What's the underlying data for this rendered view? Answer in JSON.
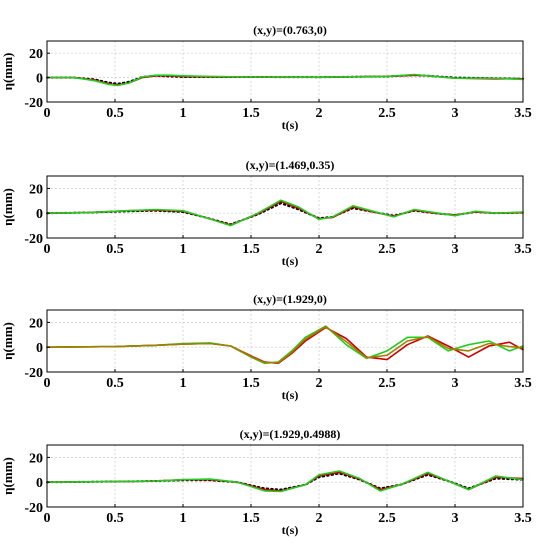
{
  "chart_data": [
    {
      "type": "line",
      "title": "(x,y)=(0.763,0)",
      "xlabel": "t(s)",
      "ylabel": "η(mm)",
      "xlim": [
        0,
        3.5
      ],
      "ylim": [
        -20,
        30
      ],
      "xticks": [
        "0",
        "0.5",
        "1",
        "1.5",
        "2",
        "2.5",
        "3",
        "3.5"
      ],
      "yticks": [
        "-20",
        "0",
        "20"
      ],
      "grid": true,
      "series": [
        {
          "style": "dotted",
          "color": "#000000",
          "x": [
            0,
            0.2,
            0.35,
            0.45,
            0.52,
            0.6,
            0.7,
            0.8,
            0.9,
            1.0,
            1.2,
            1.5,
            2.0,
            2.5,
            2.7,
            2.8,
            3.0,
            3.3,
            3.5
          ],
          "y": [
            0,
            0,
            -1.5,
            -4,
            -5,
            -3.5,
            0.5,
            1.5,
            1,
            0.5,
            0.5,
            0.5,
            0.3,
            1,
            2,
            1.5,
            0,
            -0.5,
            -1
          ]
        },
        {
          "style": "solid",
          "color": "#cc0000",
          "x": [
            0,
            0.2,
            0.35,
            0.45,
            0.52,
            0.6,
            0.7,
            0.8,
            0.9,
            1.0,
            1.2,
            1.5,
            2.0,
            2.5,
            2.7,
            2.8,
            3.0,
            3.3,
            3.5
          ],
          "y": [
            0,
            0,
            -2,
            -5,
            -6,
            -4.5,
            0,
            1.5,
            1.5,
            1,
            0.5,
            0.5,
            0.3,
            1,
            2,
            1.5,
            -0.5,
            -1,
            -1
          ]
        },
        {
          "style": "solid",
          "color": "#22cc22",
          "x": [
            0,
            0.2,
            0.35,
            0.45,
            0.52,
            0.6,
            0.7,
            0.8,
            0.9,
            1.0,
            1.2,
            1.5,
            2.0,
            2.5,
            2.7,
            2.8,
            3.0,
            3.3,
            3.5
          ],
          "y": [
            0,
            0,
            -2.5,
            -5.5,
            -6.5,
            -4.5,
            0.5,
            2,
            2,
            1.5,
            1,
            0.5,
            0.3,
            1,
            2.5,
            1.5,
            -0.5,
            -0.5,
            -1.5
          ]
        }
      ]
    },
    {
      "type": "line",
      "title": "(x,y)=(1.469,0.35)",
      "xlabel": "t(s)",
      "ylabel": "η(mm)",
      "xlim": [
        0,
        3.5
      ],
      "ylim": [
        -20,
        30
      ],
      "xticks": [
        "0",
        "0.5",
        "1",
        "1.5",
        "2",
        "2.5",
        "3",
        "3.5"
      ],
      "yticks": [
        "-20",
        "0",
        "20"
      ],
      "grid": true,
      "series": [
        {
          "style": "dotted",
          "color": "#000000",
          "x": [
            0,
            0.3,
            0.6,
            0.8,
            1.0,
            1.15,
            1.35,
            1.55,
            1.72,
            1.85,
            2.0,
            2.1,
            2.25,
            2.4,
            2.55,
            2.7,
            2.85,
            3.0,
            3.15,
            3.3,
            3.5
          ],
          "y": [
            0,
            0.5,
            1.5,
            2,
            1,
            -3,
            -9,
            -1,
            8,
            3,
            -4,
            -3,
            4,
            1,
            -2,
            2,
            0,
            -1.5,
            1,
            0,
            0.5
          ]
        },
        {
          "style": "solid",
          "color": "#cc0000",
          "x": [
            0,
            0.3,
            0.6,
            0.8,
            1.0,
            1.15,
            1.35,
            1.55,
            1.72,
            1.85,
            2.0,
            2.1,
            2.25,
            2.4,
            2.55,
            2.7,
            2.85,
            3.0,
            3.15,
            3.3,
            3.5
          ],
          "y": [
            0,
            0.5,
            2,
            2.5,
            1.5,
            -3,
            -9.5,
            -0.5,
            9.5,
            4,
            -4.5,
            -3.5,
            5,
            1,
            -2.5,
            2.5,
            0,
            -1.5,
            1,
            0,
            0.5
          ]
        },
        {
          "style": "solid",
          "color": "#22cc22",
          "x": [
            0,
            0.3,
            0.6,
            0.8,
            1.0,
            1.15,
            1.35,
            1.55,
            1.72,
            1.85,
            2.0,
            2.1,
            2.25,
            2.4,
            2.55,
            2.7,
            2.85,
            3.0,
            3.15,
            3.3,
            3.5
          ],
          "y": [
            0,
            0.5,
            2,
            3,
            2,
            -3,
            -10,
            0,
            10.5,
            5,
            -5,
            -3,
            6,
            1.5,
            -3,
            3,
            0.5,
            -2,
            1.5,
            0,
            1
          ]
        }
      ]
    },
    {
      "type": "line",
      "title": "(x,y)=(1.929,0)",
      "xlabel": "t(s)",
      "ylabel": "η(mm)",
      "xlim": [
        0,
        3.5
      ],
      "ylim": [
        -20,
        30
      ],
      "xticks": [
        "0",
        "0.5",
        "1",
        "1.5",
        "2",
        "2.5",
        "3",
        "3.5"
      ],
      "yticks": [
        "-20",
        "0",
        "20"
      ],
      "grid": true,
      "series": [
        {
          "style": "solid",
          "color": "#cc0000",
          "x": [
            0,
            0.5,
            0.8,
            1.0,
            1.2,
            1.35,
            1.5,
            1.6,
            1.7,
            1.8,
            1.9,
            2.05,
            2.2,
            2.35,
            2.5,
            2.65,
            2.8,
            2.95,
            3.1,
            3.25,
            3.4,
            3.5
          ],
          "y": [
            0,
            0.5,
            1.5,
            2.5,
            3,
            1,
            -7,
            -12,
            -13,
            -5,
            5,
            16,
            7,
            -8,
            -10,
            2,
            9,
            1,
            -8,
            1,
            4,
            -2
          ]
        },
        {
          "style": "solid",
          "color": "#22cc22",
          "x": [
            0,
            0.5,
            0.8,
            1.0,
            1.2,
            1.35,
            1.5,
            1.6,
            1.7,
            1.8,
            1.9,
            2.05,
            2.2,
            2.35,
            2.5,
            2.65,
            2.8,
            2.95,
            3.1,
            3.25,
            3.4,
            3.5
          ],
          "y": [
            0,
            0.5,
            1.5,
            3,
            3.5,
            1,
            -8,
            -13,
            -12,
            -3,
            8,
            17,
            2,
            -9,
            -3,
            8,
            8,
            -3,
            2,
            5,
            -3,
            1
          ]
        },
        {
          "style": "solid",
          "color": "#a08000",
          "x": [
            0,
            0.5,
            0.8,
            1.0,
            1.2,
            1.35,
            1.5,
            1.6,
            1.7,
            1.8,
            1.9,
            2.05,
            2.2,
            2.35,
            2.5,
            2.65,
            2.8,
            2.95,
            3.1,
            3.25,
            3.4,
            3.5
          ],
          "y": [
            0,
            0.5,
            1.5,
            2.5,
            3,
            1,
            -7.5,
            -12.5,
            -12.5,
            -4,
            6.5,
            16.5,
            4.5,
            -8.5,
            -6.5,
            5,
            8.5,
            -1,
            -3,
            3,
            0.5,
            -0.5
          ]
        }
      ]
    },
    {
      "type": "line",
      "title": "(x,y)=(1.929,0.4988)",
      "xlabel": "t(s)",
      "ylabel": "η(mm)",
      "xlim": [
        0,
        3.5
      ],
      "ylim": [
        -20,
        30
      ],
      "xticks": [
        "0",
        "0.5",
        "1",
        "1.5",
        "2",
        "2.5",
        "3",
        "3.5"
      ],
      "yticks": [
        "-20",
        "0",
        "20"
      ],
      "grid": true,
      "series": [
        {
          "style": "dotted",
          "color": "#000000",
          "x": [
            0,
            0.5,
            0.8,
            1.0,
            1.2,
            1.4,
            1.6,
            1.72,
            1.9,
            2.0,
            2.15,
            2.3,
            2.45,
            2.6,
            2.8,
            2.95,
            3.1,
            3.3,
            3.5
          ],
          "y": [
            0,
            0.5,
            1,
            1.5,
            1.5,
            0,
            -5,
            -6,
            -2,
            4,
            7,
            2,
            -5,
            -2,
            6,
            1,
            -5,
            3,
            2
          ]
        },
        {
          "style": "solid",
          "color": "#cc0000",
          "x": [
            0,
            0.5,
            0.8,
            1.0,
            1.2,
            1.4,
            1.6,
            1.72,
            1.9,
            2.0,
            2.15,
            2.3,
            2.45,
            2.6,
            2.8,
            2.95,
            3.1,
            3.3,
            3.5
          ],
          "y": [
            0,
            0.5,
            1,
            2,
            2,
            0,
            -6,
            -7,
            -2,
            5,
            8,
            2.5,
            -6,
            -2,
            7,
            1,
            -6,
            4,
            3
          ]
        },
        {
          "style": "solid",
          "color": "#22cc22",
          "x": [
            0,
            0.5,
            0.8,
            1.0,
            1.2,
            1.4,
            1.6,
            1.72,
            1.9,
            2.0,
            2.15,
            2.3,
            2.45,
            2.6,
            2.8,
            2.95,
            3.1,
            3.3,
            3.5
          ],
          "y": [
            0,
            0.5,
            1,
            2,
            2.5,
            0,
            -7,
            -7.5,
            -2,
            6,
            9,
            3,
            -7,
            -2,
            8,
            1,
            -6,
            5,
            2
          ]
        }
      ]
    }
  ]
}
